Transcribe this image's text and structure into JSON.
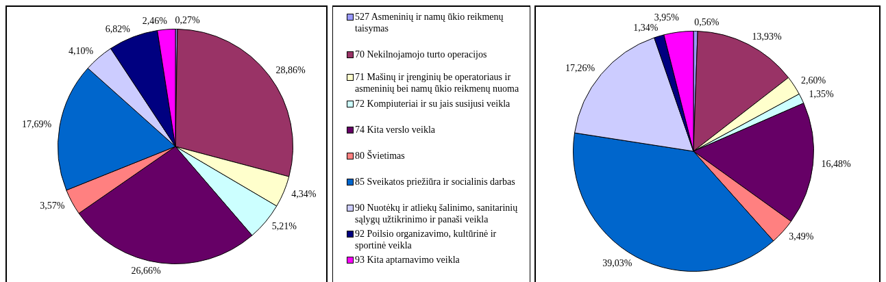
{
  "chart_data": [
    {
      "type": "pie",
      "legend": "right",
      "categories": [
        "527 Asmeninių ir namų ūkio reikmenų taisymas",
        "70 Nekilnojamojo turto operacijos",
        "71 Mašinų ir įrenginių be operatoriaus ir asmeninių bei namų ūkio reikmenų nuoma",
        "72 Kompiuteriai ir su jais susijusi veikla",
        "74 Kita verslo veikla",
        "80 Švietimas",
        "85 Sveikatos priežiūra ir socialinis darbas",
        "90 Nuotėkų ir atliekų šalinimo, sanitarinių sąlygų užtikrinimo ir panaši veikla",
        "92 Poilsio organizavimo, kultūrinė ir sportinė veikla",
        "93 Kita aptarnavimo veikla"
      ],
      "values": [
        0.27,
        28.86,
        4.34,
        5.21,
        26.66,
        3.57,
        17.69,
        4.1,
        6.82,
        2.46
      ],
      "value_labels": [
        "0,27%",
        "28,86%",
        "4,34%",
        "5,21%",
        "26,66%",
        "3,57%",
        "17,69%",
        "4,10%",
        "6,82%",
        "2,46%"
      ],
      "colors": [
        "#9999ff",
        "#993366",
        "#ffffcc",
        "#ccffff",
        "#660066",
        "#ff8080",
        "#0066cc",
        "#ccccff",
        "#000080",
        "#ff00ff"
      ]
    },
    {
      "type": "pie",
      "categories": [
        null,
        null,
        null,
        null,
        null,
        null,
        null,
        null,
        null,
        null
      ],
      "values": [
        0.56,
        13.93,
        2.6,
        1.35,
        16.48,
        3.49,
        39.03,
        17.26,
        1.34,
        3.95
      ],
      "value_labels": [
        "0,56%",
        "13,93%",
        "2,60%",
        "1,35%",
        "16,48%",
        "3,49%",
        "39,03%",
        "17,26%",
        "1,34%",
        "3,95%"
      ],
      "colors": [
        "#9999ff",
        "#993366",
        "#ffffcc",
        "#ccffff",
        "#660066",
        "#ff8080",
        "#0066cc",
        "#ccccff",
        "#000080",
        "#ff00ff"
      ]
    }
  ]
}
